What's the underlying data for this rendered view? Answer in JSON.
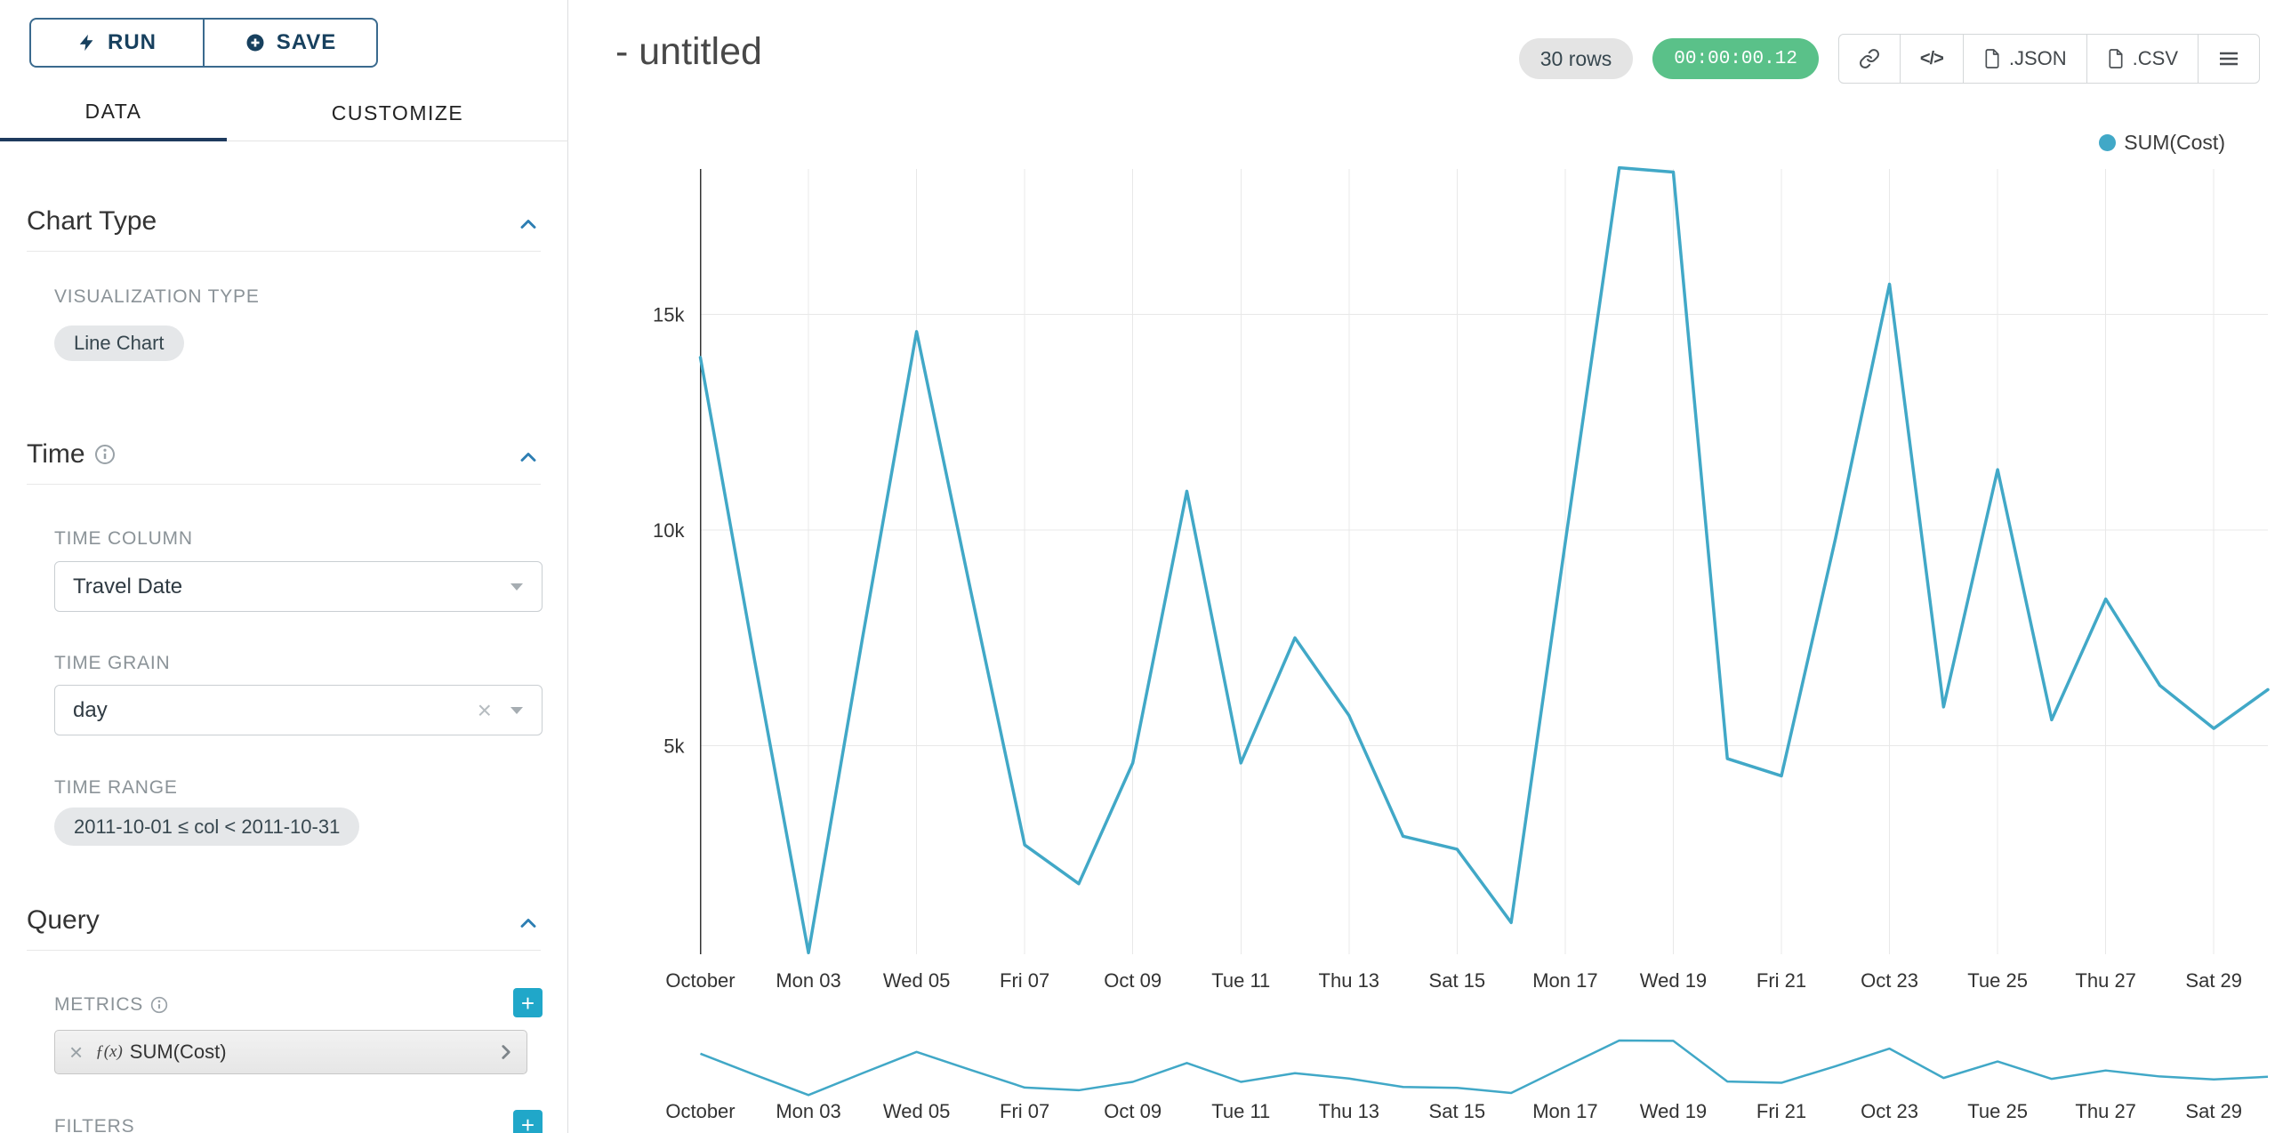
{
  "sidebar": {
    "run_button": "RUN",
    "save_button": "SAVE",
    "tabs": [
      {
        "label": "DATA",
        "active": true
      },
      {
        "label": "CUSTOMIZE",
        "active": false
      }
    ],
    "chart_type_section": {
      "title": "Chart Type",
      "visualization_type_label": "VISUALIZATION TYPE",
      "visualization_type_value": "Line Chart"
    },
    "time_section": {
      "title": "Time",
      "time_column_label": "TIME COLUMN",
      "time_column_value": "Travel Date",
      "time_grain_label": "TIME GRAIN",
      "time_grain_value": "day",
      "time_range_label": "TIME RANGE",
      "time_range_value": "2011-10-01 ≤ col < 2011-10-31"
    },
    "query_section": {
      "title": "Query",
      "metrics_label": "METRICS",
      "metric_chip": {
        "fx": "ƒ(x)",
        "label": "SUM(Cost)"
      },
      "filters_label": "FILTERS"
    }
  },
  "header": {
    "title": "- untitled",
    "rows_badge": "30 rows",
    "timer_badge": "00:00:00.12",
    "buttons": {
      "link_icon": "link-icon",
      "code_glyph": "</>",
      "json": ".JSON",
      "csv": ".CSV",
      "menu_icon": "hamburger-icon"
    }
  },
  "legend": {
    "label": "SUM(Cost)"
  },
  "colors": {
    "accent_teal": "#20a7c9",
    "series_line": "#41a8c7",
    "timer_green": "#5ac189",
    "tab_underline": "#1e3a5e",
    "section_chevron": "#2d7eb3"
  },
  "chart_data": {
    "type": "line",
    "title": "",
    "xlabel": "",
    "ylabel": "",
    "x": [
      "2011-10-01",
      "2011-10-02",
      "2011-10-03",
      "2011-10-04",
      "2011-10-05",
      "2011-10-06",
      "2011-10-07",
      "2011-10-08",
      "2011-10-09",
      "2011-10-10",
      "2011-10-11",
      "2011-10-12",
      "2011-10-13",
      "2011-10-14",
      "2011-10-15",
      "2011-10-16",
      "2011-10-17",
      "2011-10-18",
      "2011-10-19",
      "2011-10-20",
      "2011-10-21",
      "2011-10-22",
      "2011-10-23",
      "2011-10-24",
      "2011-10-25",
      "2011-10-26",
      "2011-10-27",
      "2011-10-28",
      "2011-10-29",
      "2011-10-30"
    ],
    "series": [
      {
        "name": "SUM(Cost)",
        "values": [
          14000,
          7000,
          200,
          7500,
          14600,
          8600,
          2700,
          1800,
          4600,
          10900,
          4600,
          7500,
          5700,
          2900,
          2600,
          900,
          9700,
          18400,
          18300,
          4700,
          4300,
          9800,
          15700,
          5900,
          11400,
          5600,
          8400,
          6400,
          5400,
          6300
        ]
      }
    ],
    "x_tick_labels": [
      "October",
      "Mon 03",
      "Wed 05",
      "Fri 07",
      "Oct 09",
      "Tue 11",
      "Thu 13",
      "Sat 15",
      "Mon 17",
      "Wed 19",
      "Fri 21",
      "Oct 23",
      "Tue 25",
      "Thu 27",
      "Sat 29"
    ],
    "y_ticks": [
      5000,
      10000,
      15000
    ],
    "y_tick_labels": [
      "5k",
      "10k",
      "15k"
    ],
    "ylim": [
      0,
      18400
    ],
    "grid": true,
    "legend_position": "top-right",
    "line_color": "#41a8c7",
    "has_mini_preview": true
  }
}
